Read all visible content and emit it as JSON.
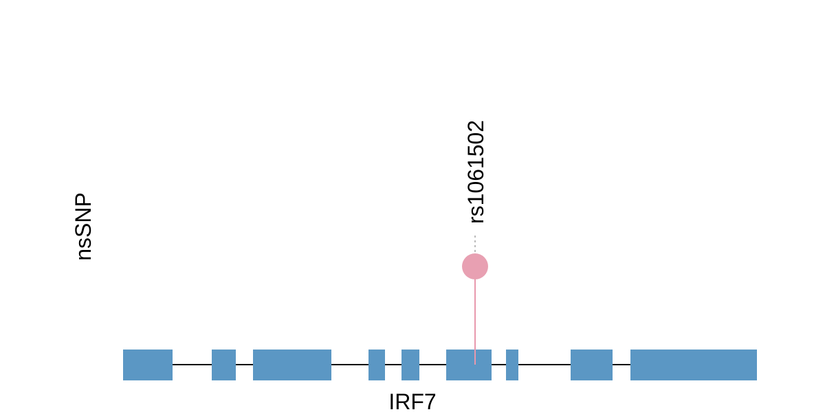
{
  "track_label": "nsSNP",
  "snp": {
    "label": "rs1061502"
  },
  "gene": {
    "label": "IRF7"
  }
}
